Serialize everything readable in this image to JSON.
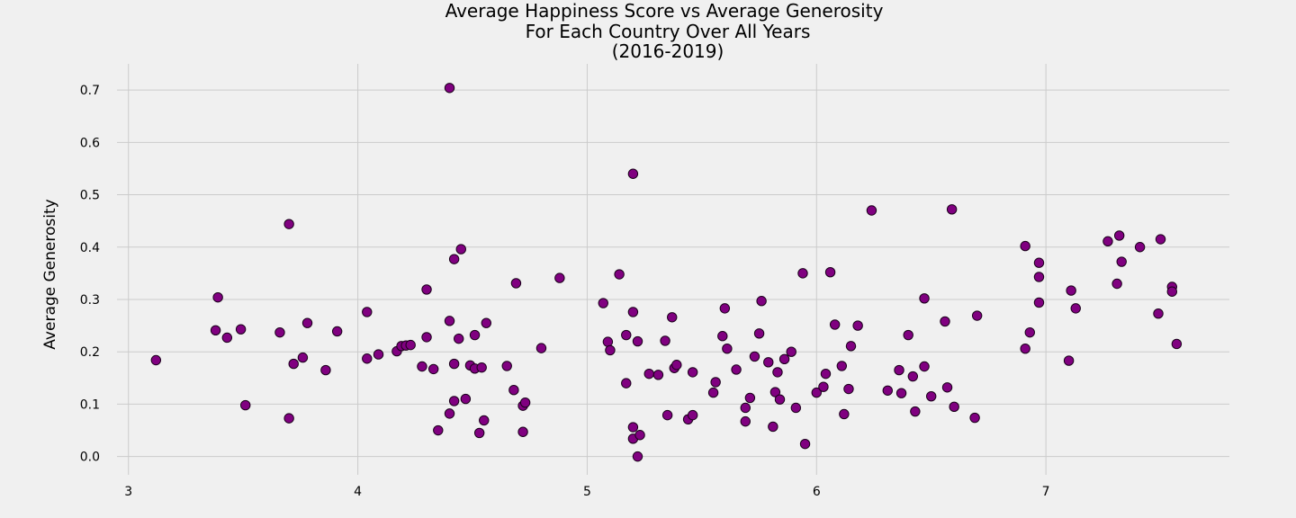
{
  "chart_data": {
    "type": "scatter",
    "title_lines": [
      "Average Happiness Score vs Average Generosity",
      "For Each Country Over All Years",
      "(2016-2019)"
    ],
    "xlabel": "",
    "ylabel": "Average Generosity",
    "xlim": [
      2.95,
      7.8
    ],
    "ylim": [
      -0.035,
      0.75
    ],
    "xticks": [
      3,
      4,
      5,
      6,
      7
    ],
    "yticks": [
      0.0,
      0.1,
      0.2,
      0.3,
      0.4,
      0.5,
      0.6,
      0.7
    ],
    "ytick_labels": [
      "0.0",
      "0.1",
      "0.2",
      "0.3",
      "0.4",
      "0.5",
      "0.6",
      "0.7"
    ],
    "grid": true,
    "marker_color": "#800080",
    "marker_edge_color": "#1a001a",
    "background_color": "#f0f0f0",
    "points": [
      [
        3.12,
        0.184
      ],
      [
        3.38,
        0.241
      ],
      [
        3.39,
        0.304
      ],
      [
        3.43,
        0.227
      ],
      [
        3.49,
        0.243
      ],
      [
        3.51,
        0.098
      ],
      [
        3.66,
        0.237
      ],
      [
        3.7,
        0.444
      ],
      [
        3.7,
        0.073
      ],
      [
        3.72,
        0.177
      ],
      [
        3.76,
        0.189
      ],
      [
        3.78,
        0.255
      ],
      [
        3.86,
        0.165
      ],
      [
        3.91,
        0.239
      ],
      [
        4.04,
        0.276
      ],
      [
        4.04,
        0.187
      ],
      [
        4.09,
        0.195
      ],
      [
        4.17,
        0.201
      ],
      [
        4.19,
        0.211
      ],
      [
        4.21,
        0.212
      ],
      [
        4.23,
        0.213
      ],
      [
        4.28,
        0.172
      ],
      [
        4.3,
        0.319
      ],
      [
        4.3,
        0.228
      ],
      [
        4.33,
        0.167
      ],
      [
        4.35,
        0.05
      ],
      [
        4.4,
        0.704
      ],
      [
        4.4,
        0.259
      ],
      [
        4.4,
        0.082
      ],
      [
        4.42,
        0.377
      ],
      [
        4.42,
        0.106
      ],
      [
        4.42,
        0.177
      ],
      [
        4.44,
        0.225
      ],
      [
        4.45,
        0.396
      ],
      [
        4.47,
        0.11
      ],
      [
        4.49,
        0.174
      ],
      [
        4.51,
        0.232
      ],
      [
        4.51,
        0.168
      ],
      [
        4.53,
        0.045
      ],
      [
        4.54,
        0.17
      ],
      [
        4.55,
        0.069
      ],
      [
        4.56,
        0.255
      ],
      [
        4.65,
        0.173
      ],
      [
        4.68,
        0.127
      ],
      [
        4.69,
        0.331
      ],
      [
        4.72,
        0.097
      ],
      [
        4.72,
        0.047
      ],
      [
        4.73,
        0.103
      ],
      [
        4.8,
        0.207
      ],
      [
        4.88,
        0.341
      ],
      [
        5.07,
        0.293
      ],
      [
        5.09,
        0.219
      ],
      [
        5.1,
        0.203
      ],
      [
        5.14,
        0.348
      ],
      [
        5.17,
        0.232
      ],
      [
        5.17,
        0.14
      ],
      [
        5.2,
        0.54
      ],
      [
        5.2,
        0.276
      ],
      [
        5.2,
        0.056
      ],
      [
        5.2,
        0.034
      ],
      [
        5.22,
        0.22
      ],
      [
        5.22,
        0.0
      ],
      [
        5.23,
        0.041
      ],
      [
        5.27,
        0.158
      ],
      [
        5.31,
        0.156
      ],
      [
        5.34,
        0.221
      ],
      [
        5.35,
        0.079
      ],
      [
        5.37,
        0.266
      ],
      [
        5.38,
        0.169
      ],
      [
        5.39,
        0.175
      ],
      [
        5.44,
        0.071
      ],
      [
        5.46,
        0.079
      ],
      [
        5.46,
        0.161
      ],
      [
        5.55,
        0.122
      ],
      [
        5.56,
        0.142
      ],
      [
        5.59,
        0.23
      ],
      [
        5.6,
        0.283
      ],
      [
        5.61,
        0.206
      ],
      [
        5.65,
        0.166
      ],
      [
        5.69,
        0.067
      ],
      [
        5.69,
        0.093
      ],
      [
        5.71,
        0.112
      ],
      [
        5.73,
        0.191
      ],
      [
        5.75,
        0.235
      ],
      [
        5.76,
        0.297
      ],
      [
        5.79,
        0.18
      ],
      [
        5.81,
        0.057
      ],
      [
        5.82,
        0.123
      ],
      [
        5.83,
        0.161
      ],
      [
        5.84,
        0.109
      ],
      [
        5.86,
        0.186
      ],
      [
        5.89,
        0.2
      ],
      [
        5.91,
        0.093
      ],
      [
        5.94,
        0.35
      ],
      [
        5.95,
        0.024
      ],
      [
        6.0,
        0.122
      ],
      [
        6.03,
        0.133
      ],
      [
        6.04,
        0.158
      ],
      [
        6.06,
        0.352
      ],
      [
        6.08,
        0.252
      ],
      [
        6.11,
        0.173
      ],
      [
        6.12,
        0.081
      ],
      [
        6.14,
        0.129
      ],
      [
        6.15,
        0.211
      ],
      [
        6.18,
        0.25
      ],
      [
        6.24,
        0.47
      ],
      [
        6.31,
        0.126
      ],
      [
        6.36,
        0.165
      ],
      [
        6.37,
        0.121
      ],
      [
        6.4,
        0.232
      ],
      [
        6.42,
        0.153
      ],
      [
        6.43,
        0.086
      ],
      [
        6.47,
        0.302
      ],
      [
        6.47,
        0.172
      ],
      [
        6.5,
        0.115
      ],
      [
        6.56,
        0.258
      ],
      [
        6.57,
        0.132
      ],
      [
        6.59,
        0.472
      ],
      [
        6.6,
        0.095
      ],
      [
        6.69,
        0.074
      ],
      [
        6.7,
        0.269
      ],
      [
        6.91,
        0.402
      ],
      [
        6.91,
        0.206
      ],
      [
        6.93,
        0.237
      ],
      [
        6.97,
        0.343
      ],
      [
        6.97,
        0.37
      ],
      [
        6.97,
        0.294
      ],
      [
        7.1,
        0.183
      ],
      [
        7.11,
        0.317
      ],
      [
        7.13,
        0.283
      ],
      [
        7.27,
        0.411
      ],
      [
        7.31,
        0.33
      ],
      [
        7.32,
        0.422
      ],
      [
        7.33,
        0.372
      ],
      [
        7.41,
        0.4
      ],
      [
        7.49,
        0.273
      ],
      [
        7.5,
        0.415
      ],
      [
        7.55,
        0.324
      ],
      [
        7.55,
        0.315
      ],
      [
        7.57,
        0.215
      ]
    ]
  }
}
